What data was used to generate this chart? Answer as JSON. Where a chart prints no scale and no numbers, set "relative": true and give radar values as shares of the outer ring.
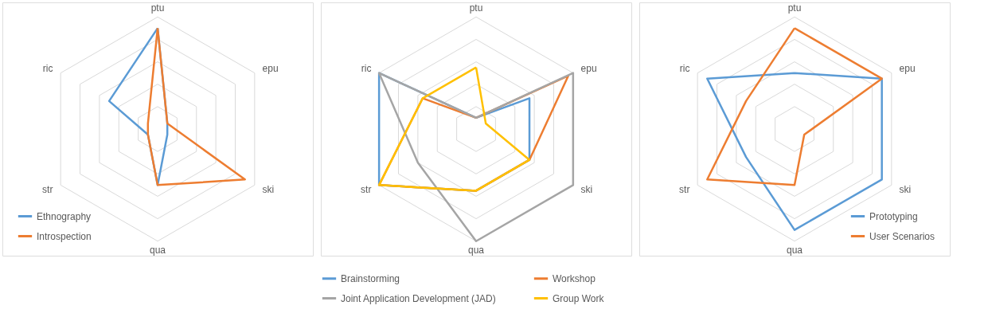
{
  "chart_data": [
    {
      "type": "radar",
      "relative": true,
      "grid": true,
      "legend": "bottom left",
      "categories": [
        "ptu",
        "epu",
        "ski",
        "qua",
        "str",
        "ric"
      ],
      "series": [
        {
          "name": "Ethnography",
          "color": "#5b9bd5",
          "values": [
            0.9,
            0.1,
            0.1,
            0.5,
            0.1,
            0.5
          ]
        },
        {
          "name": "Introspection",
          "color": "#ed7d31",
          "values": [
            0.9,
            0.1,
            0.9,
            0.5,
            0.1,
            0.1
          ]
        }
      ]
    },
    {
      "type": "radar",
      "relative": true,
      "grid": true,
      "legend": "bottom",
      "categories": [
        "ptu",
        "epu",
        "ski",
        "qua",
        "str",
        "ric"
      ],
      "series": [
        {
          "name": "Brainstorming",
          "color": "#5b9bd5",
          "values": [
            0.1,
            0.55,
            0.55,
            0.55,
            1.0,
            1.0
          ]
        },
        {
          "name": "Workshop",
          "color": "#ed7d31",
          "values": [
            0.1,
            0.95,
            0.55,
            0.55,
            1.0,
            0.55
          ]
        },
        {
          "name": "Joint Application Development (JAD)",
          "color": "#a5a5a5",
          "values": [
            0.1,
            1.0,
            1.0,
            1.0,
            0.6,
            1.0
          ]
        },
        {
          "name": "Group Work",
          "color": "#ffc000",
          "values": [
            0.55,
            0.1,
            0.55,
            0.55,
            1.0,
            0.55
          ]
        }
      ]
    },
    {
      "type": "radar",
      "relative": true,
      "grid": true,
      "legend": "bottom right",
      "categories": [
        "ptu",
        "epu",
        "ski",
        "qua",
        "str",
        "ric"
      ],
      "series": [
        {
          "name": "Prototyping",
          "color": "#5b9bd5",
          "values": [
            0.5,
            0.9,
            0.9,
            0.9,
            0.5,
            0.9
          ]
        },
        {
          "name": "User Scenarios",
          "color": "#ed7d31",
          "values": [
            0.9,
            0.9,
            0.1,
            0.5,
            0.9,
            0.5
          ]
        }
      ]
    }
  ]
}
